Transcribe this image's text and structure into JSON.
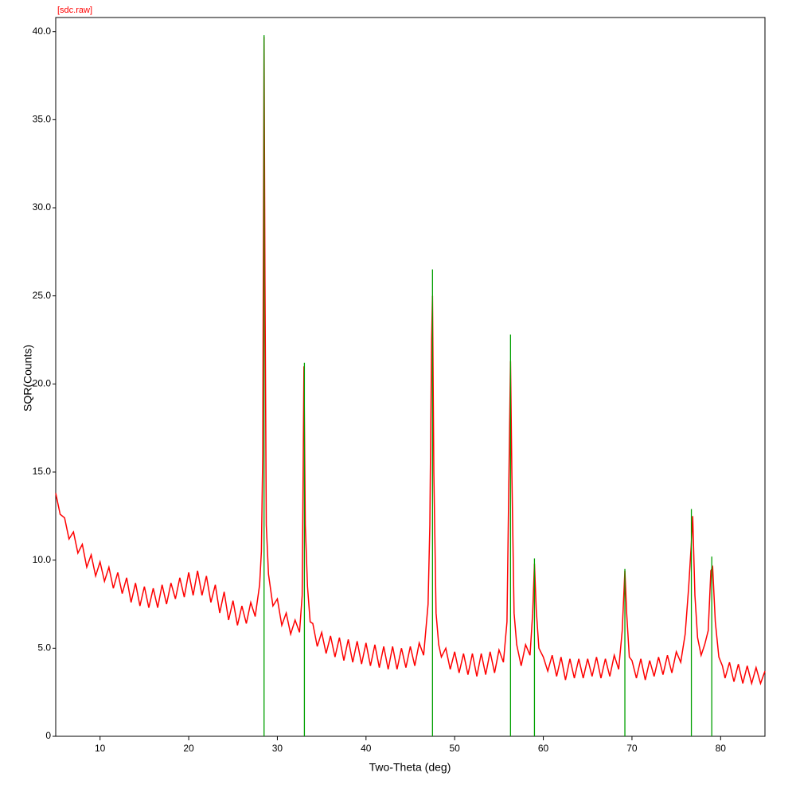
{
  "chart_data": {
    "type": "line",
    "title": "[sdc.raw]",
    "x_label": "Two-Theta (deg)",
    "y_label": "SQR(Counts)",
    "xlim": [
      5,
      85
    ],
    "ylim": [
      0,
      40.8
    ],
    "xticks": [
      10,
      20,
      30,
      40,
      50,
      60,
      70,
      80
    ],
    "yticks": [
      0,
      {
        "value": 5,
        "label": "5.0"
      },
      {
        "value": 10,
        "label": "10.0"
      },
      {
        "value": 15,
        "label": "15.0"
      },
      {
        "value": 20,
        "label": "20.0"
      },
      {
        "value": 25,
        "label": "25.0"
      },
      {
        "value": 30,
        "label": "30.0"
      },
      {
        "value": 35,
        "label": "35.0"
      },
      {
        "value": 40,
        "label": "40.0"
      }
    ],
    "series": [
      {
        "style": "line",
        "color": "#ff0000",
        "x": [
          5,
          5.5,
          6,
          6.5,
          7,
          7.5,
          8,
          8.5,
          9,
          9.5,
          10,
          10.5,
          11,
          11.5,
          12,
          12.5,
          13,
          13.5,
          14,
          14.5,
          15,
          15.5,
          16,
          16.5,
          17,
          17.5,
          18,
          18.5,
          19,
          19.5,
          20,
          20.5,
          21,
          21.5,
          22,
          22.5,
          23,
          23.5,
          24,
          24.5,
          25,
          25.5,
          26,
          26.5,
          27,
          27.5,
          28,
          28.2,
          28.35,
          28.5,
          28.6,
          28.75,
          29,
          29.5,
          30,
          30.5,
          31,
          31.5,
          32,
          32.5,
          32.8,
          33,
          33.15,
          33.4,
          33.7,
          34,
          34.5,
          35,
          35.5,
          36,
          36.5,
          37,
          37.5,
          38,
          38.5,
          39,
          39.5,
          40,
          40.5,
          41,
          41.5,
          42,
          42.5,
          43,
          43.5,
          44,
          44.5,
          45,
          45.5,
          46,
          46.5,
          47,
          47.2,
          47.4,
          47.5,
          47.65,
          47.9,
          48.2,
          48.5,
          49,
          49.5,
          50,
          50.5,
          51,
          51.5,
          52,
          52.5,
          53,
          53.5,
          54,
          54.5,
          55,
          55.5,
          55.9,
          56.1,
          56.3,
          56.45,
          56.7,
          57,
          57.5,
          58,
          58.5,
          58.8,
          59,
          59.2,
          59.5,
          60,
          60.5,
          61,
          61.5,
          62,
          62.5,
          63,
          63.5,
          64,
          64.5,
          65,
          65.5,
          66,
          66.5,
          67,
          67.5,
          68,
          68.5,
          68.9,
          69.2,
          69.4,
          69.7,
          70,
          70.5,
          71,
          71.5,
          72,
          72.5,
          73,
          73.5,
          74,
          74.5,
          75,
          75.5,
          76,
          76.4,
          76.7,
          76.85,
          77.1,
          77.4,
          77.8,
          78.2,
          78.6,
          78.9,
          79.1,
          79.4,
          79.8,
          80.2,
          80.5,
          81,
          81.5,
          82,
          82.5,
          83,
          83.5,
          84,
          84.5,
          85
        ],
        "values": [
          13.8,
          12.6,
          12.4,
          11.2,
          11.6,
          10.4,
          10.9,
          9.6,
          10.3,
          9.1,
          9.9,
          8.8,
          9.6,
          8.4,
          9.3,
          8.1,
          9.0,
          7.6,
          8.7,
          7.4,
          8.5,
          7.3,
          8.4,
          7.3,
          8.6,
          7.5,
          8.7,
          7.8,
          9.0,
          7.9,
          9.3,
          8.0,
          9.4,
          8.0,
          9.1,
          7.6,
          8.6,
          7.0,
          8.2,
          6.6,
          7.7,
          6.3,
          7.4,
          6.4,
          7.6,
          6.8,
          8.6,
          10.5,
          16,
          39.7,
          26,
          12,
          9.2,
          7.4,
          7.8,
          6.3,
          7.0,
          5.8,
          6.6,
          5.9,
          8,
          21,
          12,
          8.5,
          6.5,
          6.4,
          5.1,
          5.9,
          4.7,
          5.7,
          4.5,
          5.6,
          4.3,
          5.5,
          4.2,
          5.4,
          4.1,
          5.3,
          4.0,
          5.2,
          3.9,
          5.1,
          3.8,
          5.1,
          3.8,
          5.0,
          3.9,
          5.1,
          4.0,
          5.3,
          4.6,
          7.5,
          12,
          22.5,
          25,
          15,
          7,
          5.2,
          4.5,
          5.0,
          3.8,
          4.8,
          3.6,
          4.7,
          3.5,
          4.7,
          3.4,
          4.7,
          3.5,
          4.8,
          3.6,
          4.9,
          4.2,
          6.5,
          14,
          21.3,
          15,
          7,
          5.2,
          4.0,
          5.2,
          4.6,
          7,
          9.8,
          7.2,
          5.0,
          4.5,
          3.7,
          4.6,
          3.4,
          4.5,
          3.2,
          4.4,
          3.3,
          4.4,
          3.3,
          4.4,
          3.4,
          4.5,
          3.3,
          4.4,
          3.4,
          4.6,
          3.8,
          6,
          9.4,
          7,
          4.5,
          4.3,
          3.3,
          4.4,
          3.2,
          4.3,
          3.4,
          4.5,
          3.5,
          4.6,
          3.6,
          4.8,
          4.2,
          5.8,
          8.5,
          11,
          12.5,
          8,
          5.6,
          4.6,
          5.2,
          6,
          9.4,
          9.6,
          6.5,
          4.5,
          4.0,
          3.3,
          4.2,
          3.1,
          4.1,
          3.0,
          4.0,
          3.0,
          3.9,
          3.0,
          3.7
        ]
      },
      {
        "style": "stick",
        "color": "#00a000",
        "x": [
          28.5,
          33.05,
          47.5,
          56.3,
          59.0,
          69.2,
          76.7,
          79.0
        ],
        "values": [
          39.8,
          21.2,
          26.5,
          22.8,
          10.1,
          9.5,
          12.9,
          10.2
        ]
      }
    ]
  }
}
